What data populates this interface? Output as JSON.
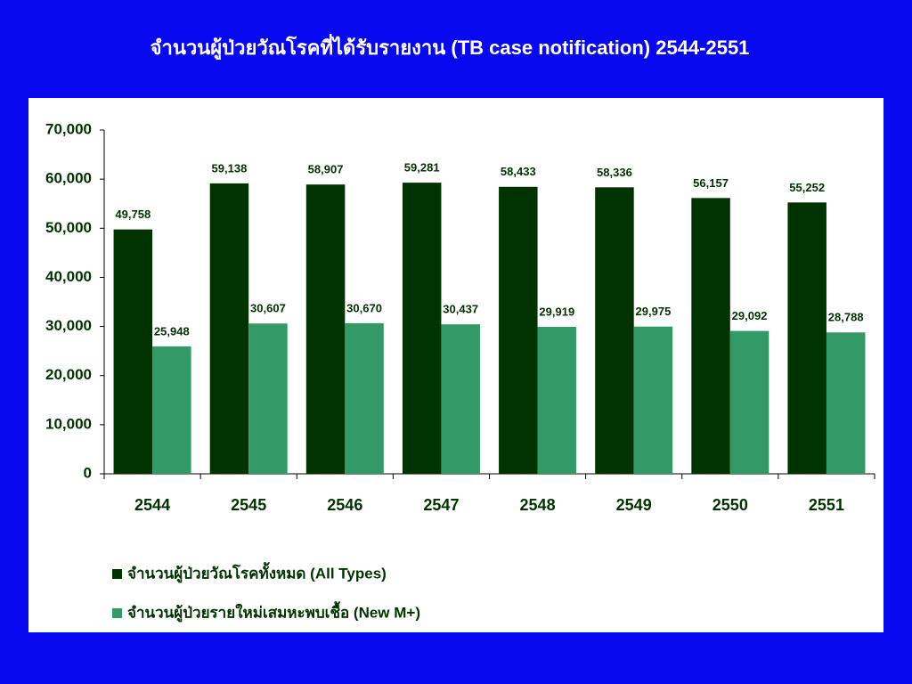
{
  "chart_data": {
    "type": "bar",
    "title": "จำนวนผู้ป่วยวัณโรคที่ได้รับรายงาน (TB case notification) 2544-2551",
    "categories": [
      "2544",
      "2545",
      "2546",
      "2547",
      "2548",
      "2549",
      "2550",
      "2551"
    ],
    "series": [
      {
        "name": "จำนวนผู้ป่วยวัณโรคทั้งหมด (All Types)",
        "color": "#003300",
        "values": [
          49758,
          59138,
          58907,
          59281,
          58433,
          58336,
          56157,
          55252
        ],
        "value_labels": [
          "49,758",
          "59,138",
          "58,907",
          "59,281",
          "58,433",
          "58,336",
          "56,157",
          "55,252"
        ]
      },
      {
        "name": "จำนวนผู้ป่วยรายใหม่เสมหะพบเชื้อ (New M+)",
        "color": "#339966",
        "values": [
          25948,
          30607,
          30670,
          30437,
          29919,
          29975,
          29092,
          28788
        ],
        "value_labels": [
          "25,948",
          "30,607",
          "30,670",
          "30,437",
          "29,919",
          "29,975",
          "29,092",
          "28,788"
        ]
      }
    ],
    "ylim": [
      0,
      70000
    ],
    "yticks": [
      0,
      {
        "value": 10000,
        "label": "10,000"
      },
      {
        "value": 20000,
        "label": "20,000"
      },
      {
        "value": 30000,
        "label": "30,000"
      },
      {
        "value": 40000,
        "label": "40,000"
      },
      {
        "value": 50000,
        "label": "50,000"
      },
      {
        "value": 60000,
        "label": "60,000"
      },
      {
        "value": 70000,
        "label": "70,000"
      }
    ],
    "grid": false,
    "legend": "bottom"
  }
}
